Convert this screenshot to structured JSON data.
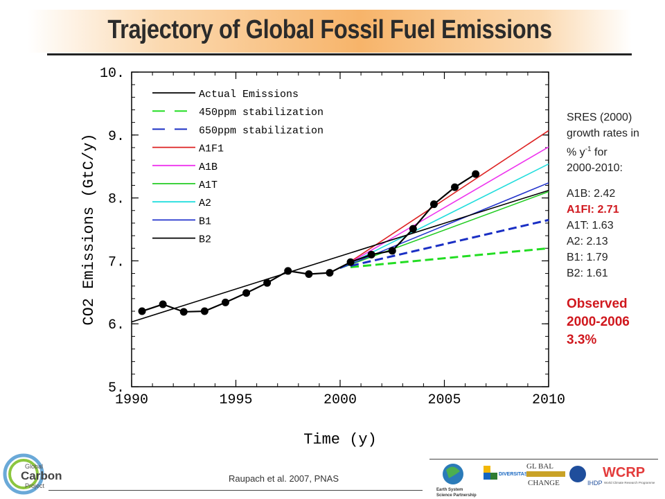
{
  "header": {
    "title": "Trajectory of Global Fossil Fuel Emissions"
  },
  "chart_data": {
    "type": "line",
    "xlabel": "Time (y)",
    "ylabel": "CO2 Emissions (GtC/y)",
    "xlim": [
      1990,
      2010
    ],
    "ylim": [
      5,
      10
    ],
    "x_ticks": [
      "1990",
      "1995",
      "2000",
      "2005",
      "2010"
    ],
    "y_ticks": [
      "5.",
      "6.",
      "7.",
      "8.",
      "9.",
      "10."
    ],
    "legend_position": "top-left",
    "series": [
      {
        "name": "Actual Emissions",
        "color": "#000000",
        "style": "solid-markers",
        "x": [
          1990.5,
          1991.5,
          1992.5,
          1993.5,
          1994.5,
          1995.5,
          1996.5,
          1997.5,
          1998.5,
          1999.5,
          2000.5,
          2001.5,
          2002.5,
          2003.5,
          2004.5,
          2005.5,
          2006.5
        ],
        "y": [
          6.2,
          6.31,
          6.19,
          6.2,
          6.34,
          6.49,
          6.65,
          6.84,
          6.79,
          6.81,
          6.98,
          7.1,
          7.16,
          7.51,
          7.9,
          8.17,
          8.38
        ]
      },
      {
        "name": "450ppm stabilization",
        "color": "#22dd22",
        "style": "dashed",
        "x": [
          2000.5,
          2010
        ],
        "y": [
          6.9,
          7.2
        ]
      },
      {
        "name": "650ppm stabilization",
        "color": "#1a2fc4",
        "style": "dashed",
        "x": [
          2000.5,
          2010
        ],
        "y": [
          6.92,
          7.65
        ]
      },
      {
        "name": "A1F1",
        "color": "#dd2222",
        "style": "solid",
        "x": [
          2000,
          2010
        ],
        "y": [
          6.88,
          9.07
        ]
      },
      {
        "name": "A1B",
        "color": "#ee33ee",
        "style": "solid",
        "x": [
          2000,
          2010
        ],
        "y": [
          6.88,
          8.81
        ]
      },
      {
        "name": "A1T",
        "color": "#22cc22",
        "style": "solid",
        "x": [
          2000,
          2010
        ],
        "y": [
          6.88,
          8.1
        ]
      },
      {
        "name": "A2",
        "color": "#22dddd",
        "style": "solid",
        "x": [
          2000,
          2010
        ],
        "y": [
          6.88,
          8.54
        ]
      },
      {
        "name": "B1",
        "color": "#2233cc",
        "style": "solid",
        "x": [
          2000,
          2010
        ],
        "y": [
          6.88,
          8.24
        ]
      },
      {
        "name": "B2",
        "color": "#000000",
        "style": "solid",
        "x": [
          1990,
          2010
        ],
        "y": [
          6.03,
          8.12
        ]
      }
    ]
  },
  "side_panel": {
    "intro_line1": "SRES (2000)",
    "intro_line2": "growth rates in",
    "intro_line3_pre": "% y",
    "intro_line3_sup": "-1",
    "intro_line3_post": " for",
    "intro_line4": "2000-2010:",
    "rates": [
      {
        "label": "A1B: 2.42",
        "highlight": false
      },
      {
        "label": "A1FI: 2.71",
        "highlight": true
      },
      {
        "label": "A1T: 1.63",
        "highlight": false
      },
      {
        "label": "A2: 2.13",
        "highlight": false
      },
      {
        "label": "B1: 1.79",
        "highlight": false
      },
      {
        "label": "B2: 1.61",
        "highlight": false
      }
    ],
    "observed_line1": "Observed",
    "observed_line2": "2000-2006",
    "observed_line3": "3.3%"
  },
  "footer": {
    "citation": "Raupach et al. 2007, PNAS",
    "gcp_logo_line1": "Global",
    "gcp_logo_line2": "Carbon",
    "gcp_logo_line3": "Project",
    "essp_line1": "Earth System",
    "essp_line2": "Science Partnership",
    "diversitas": "DIVERSITAS",
    "igbp_line1": "GL   BAL",
    "igbp_line2": "CHANGE",
    "ihdp": "IHDP",
    "wcrp": "WCRP",
    "wcrp_sub": "World Climate Research Programme"
  }
}
